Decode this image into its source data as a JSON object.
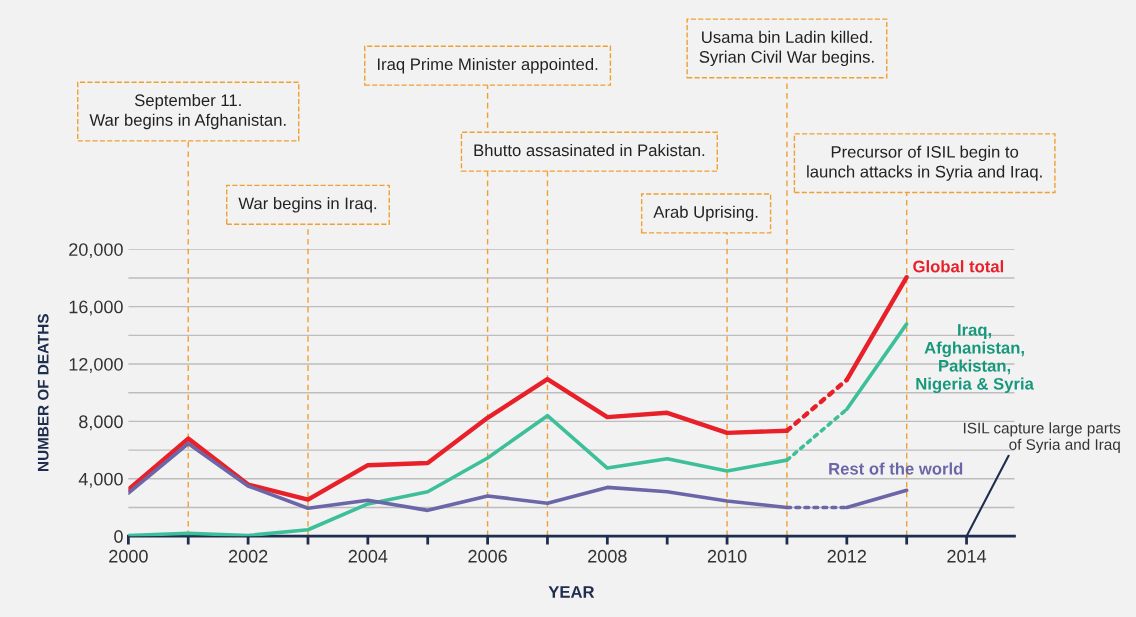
{
  "chart_data": {
    "type": "line",
    "xlabel": "YEAR",
    "ylabel": "NUMBER OF DEATHS",
    "xlim": [
      2000,
      2014.8
    ],
    "ylim": [
      0,
      20000
    ],
    "xticks": [
      2000,
      {
        "value": 2001,
        "label": null
      },
      2002,
      {
        "value": 2003,
        "label": null
      },
      2004,
      {
        "value": 2005,
        "label": null
      },
      2006,
      {
        "value": 2007,
        "label": null
      },
      2008,
      {
        "value": 2009,
        "label": null
      },
      2010,
      {
        "value": 2011,
        "label": null
      },
      2012,
      {
        "value": 2013,
        "label": null
      },
      2014
    ],
    "yticks": [
      {
        "value": 0,
        "label": "0"
      },
      {
        "value": 2000,
        "label": null
      },
      {
        "value": 4000,
        "label": "4,000"
      },
      {
        "value": 6000,
        "label": null
      },
      {
        "value": 8000,
        "label": "8,000"
      },
      {
        "value": 10000,
        "label": null
      },
      {
        "value": 12000,
        "label": "12,000"
      },
      {
        "value": 14000,
        "label": null
      },
      {
        "value": 16000,
        "label": "16,000"
      },
      {
        "value": 18000,
        "label": null
      },
      {
        "value": 20000,
        "label": "20,000"
      }
    ],
    "grid": "y",
    "marker": "none",
    "series": [
      {
        "name": "Global total",
        "color": "#e8202a",
        "line_style": "solid",
        "x": [
          2000,
          2001,
          2002,
          2003,
          2004,
          2005,
          2006,
          2007,
          2008,
          2009,
          2010,
          2011
        ],
        "values": [
          3250,
          6800,
          3600,
          2550,
          4950,
          5100,
          8250,
          10950,
          8300,
          8600,
          7200,
          7350
        ]
      },
      {
        "name": "Iraq,\nAfghanistan,\nPakistan,\nNigeria & Syria",
        "color": "#3dbf9a",
        "line_style": "solid",
        "x": [
          2000,
          2001,
          2002,
          2003,
          2004,
          2005,
          2006,
          2007,
          2008,
          2009,
          2010,
          2011
        ],
        "values": [
          50,
          200,
          50,
          450,
          2250,
          3100,
          5450,
          8400,
          4750,
          5400,
          4550,
          5300
        ]
      },
      {
        "name": "Rest of the world",
        "color": "#6b66a8",
        "line_style": "solid",
        "x": [
          2000,
          2001,
          2002,
          2003,
          2004,
          2005,
          2006,
          2007,
          2008,
          2009,
          2010,
          2011
        ],
        "values": [
          3000,
          6450,
          3500,
          1950,
          2500,
          1800,
          2800,
          2300,
          3400,
          3100,
          2450,
          2000
        ]
      },
      {
        "color": "#e8202a",
        "line_style": "dotted",
        "x": [
          2011,
          2012
        ],
        "values": [
          7350,
          10900
        ]
      },
      {
        "color": "#3dbf9a",
        "line_style": "dotted",
        "x": [
          2011,
          2012
        ],
        "values": [
          5300,
          8850
        ]
      },
      {
        "color": "#6b66a8",
        "line_style": "dotted",
        "x": [
          2011,
          2012
        ],
        "values": [
          2000,
          2000
        ]
      },
      {
        "color": "#e8202a",
        "line_style": "solid",
        "x": [
          2012,
          2013
        ],
        "values": [
          10900,
          18050
        ]
      },
      {
        "color": "#3dbf9a",
        "line_style": "solid",
        "x": [
          2012,
          2013
        ],
        "values": [
          8850,
          14800
        ]
      },
      {
        "color": "#6b66a8",
        "line_style": "solid",
        "x": [
          2012,
          2013
        ],
        "values": [
          2000,
          3200
        ]
      }
    ],
    "ref_lines": [
      {
        "axis": "x",
        "value": 2001,
        "label": "September 11.\nWar begins in Afghanistan.",
        "color": "#f0a030",
        "line_style": "dashed"
      },
      {
        "axis": "x",
        "value": 2003,
        "label": "War begins in Iraq.",
        "color": "#f0a030",
        "line_style": "dashed"
      },
      {
        "axis": "x",
        "value": 2006,
        "label": "Iraq Prime Minister appointed.",
        "color": "#f0a030",
        "line_style": "dashed"
      },
      {
        "axis": "x",
        "value": 2007,
        "label": "Bhutto assasinated in Pakistan.",
        "color": "#f0a030",
        "line_style": "dashed"
      },
      {
        "axis": "x",
        "value": 2010,
        "label": "Arab Uprising.",
        "color": "#f0a030",
        "line_style": "dashed"
      },
      {
        "axis": "x",
        "value": 2011,
        "label": "Usama bin Ladin killed.\nSyrian Civil War begins.",
        "color": "#f0a030",
        "line_style": "dashed"
      },
      {
        "axis": "x",
        "value": 2013,
        "label": "Precursor of ISIL begin to\nlaunch attacks in Syria and Iraq.",
        "color": "#f0a030",
        "line_style": "dashed"
      }
    ],
    "annotations": [
      "ISIL capture large parts\nof Syria and Iraq"
    ]
  }
}
